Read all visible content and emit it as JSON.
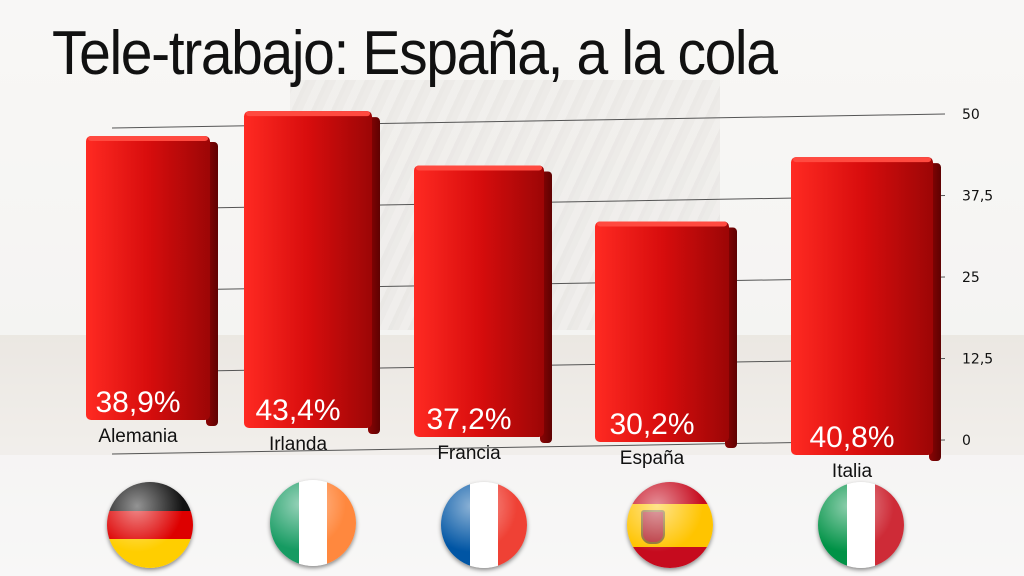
{
  "title": "Tele-trabajo: España, a la cola",
  "chart_data": {
    "type": "bar",
    "categories": [
      "Alemania",
      "Irlanda",
      "Francia",
      "España",
      "Italia"
    ],
    "values": [
      38.9,
      43.4,
      37.2,
      30.2,
      40.8
    ],
    "value_labels": [
      "38,9%",
      "43,4%",
      "37,2%",
      "30,2%",
      "40,8%"
    ],
    "yticks": [
      0,
      12.5,
      25,
      37.5,
      50
    ],
    "ytick_labels": [
      "0",
      "12,5",
      "25",
      "37,5",
      "50"
    ],
    "ylim": [
      0,
      50
    ],
    "grid": true,
    "bar_color": "#d60f0f",
    "xlabel": "",
    "ylabel": ""
  },
  "flags": [
    {
      "country": "Alemania",
      "icon": "germany-flag-icon"
    },
    {
      "country": "Irlanda",
      "icon": "ireland-flag-icon"
    },
    {
      "country": "Francia",
      "icon": "france-flag-icon"
    },
    {
      "country": "España",
      "icon": "spain-flag-icon"
    },
    {
      "country": "Italia",
      "icon": "italy-flag-icon"
    }
  ]
}
